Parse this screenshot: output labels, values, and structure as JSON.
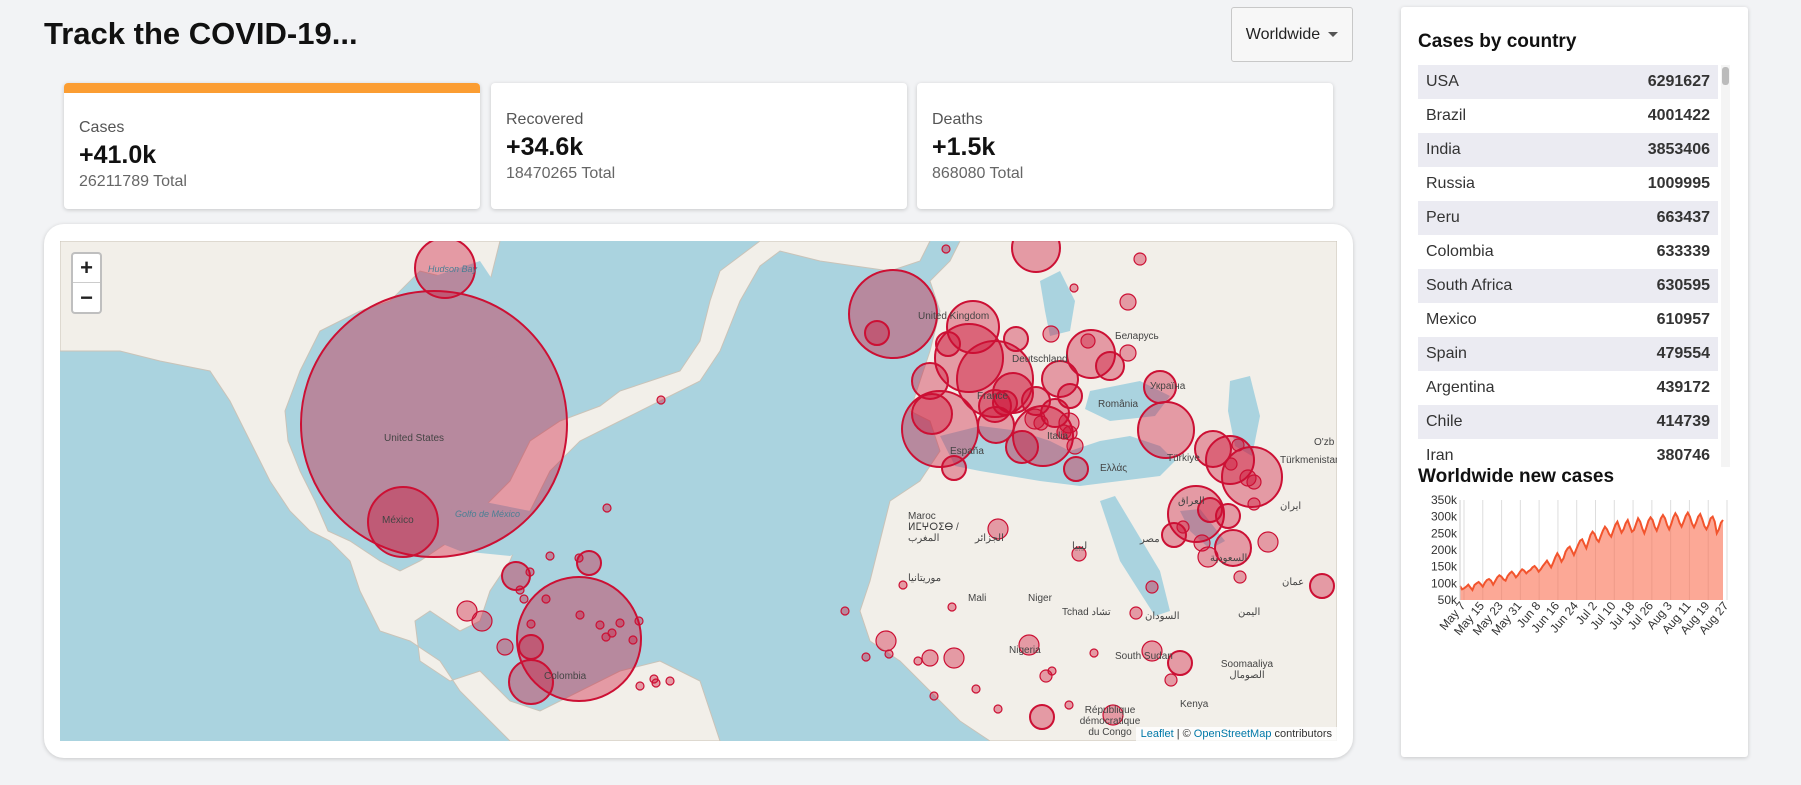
{
  "header": {
    "title": "Track the COVID-19...",
    "region_select": "Worldwide"
  },
  "stats": [
    {
      "label": "Cases",
      "delta": "+41.0k",
      "total": "26211789 Total",
      "accent": "#fb9d32",
      "active": true
    },
    {
      "label": "Recovered",
      "delta": "+34.6k",
      "total": "18470265 Total",
      "active": false
    },
    {
      "label": "Deaths",
      "delta": "+1.5k",
      "total": "868080 Total",
      "active": false
    }
  ],
  "map": {
    "zoom_in": "+",
    "zoom_out": "−",
    "attribution": {
      "leaflet": "Leaflet",
      "separator": "| ©",
      "osm": "OpenStreetMap",
      "suffix": "contributors"
    },
    "country_labels": [
      "United States",
      "México",
      "Colombia",
      "United Kingdom",
      "Deutschland",
      "France",
      "España",
      "Italia",
      "România",
      "Україна",
      "Беларусь",
      "Türkiye",
      "Ελλάς",
      "مصر",
      "العراق",
      "ایران",
      "السعودية",
      "الجزائر",
      "ليبيا",
      "Maroc ⵍⵎⵖⵔⵉⴱ / المغرب",
      "موريتانيا",
      "Mali",
      "Niger",
      "Tchad تشاد",
      "Nigeria",
      "السودان",
      "South Sudan",
      "République démocratique du Congo",
      "Kenya",
      "Soomaaliya الصومال",
      "اليمن",
      "عمان",
      "Türkmenistan",
      "O'zb"
    ],
    "sea_labels": [
      "Hudson Bay",
      "Golfo de México"
    ],
    "bubble_color": "#cc1034"
  },
  "sidebar": {
    "table_title": "Cases by country",
    "countries": [
      {
        "name": "USA",
        "cases": "6291627"
      },
      {
        "name": "Brazil",
        "cases": "4001422"
      },
      {
        "name": "India",
        "cases": "3853406"
      },
      {
        "name": "Russia",
        "cases": "1009995"
      },
      {
        "name": "Peru",
        "cases": "663437"
      },
      {
        "name": "Colombia",
        "cases": "633339"
      },
      {
        "name": "South Africa",
        "cases": "630595"
      },
      {
        "name": "Mexico",
        "cases": "610957"
      },
      {
        "name": "Spain",
        "cases": "479554"
      },
      {
        "name": "Argentina",
        "cases": "439172"
      },
      {
        "name": "Chile",
        "cases": "414739"
      },
      {
        "name": "Iran",
        "cases": "380746"
      }
    ],
    "chart_title": "Worldwide new cases"
  },
  "chart_data": {
    "type": "area",
    "ylim": [
      50000,
      350000
    ],
    "y_ticks": [
      "50k",
      "100k",
      "150k",
      "200k",
      "250k",
      "300k",
      "350k"
    ],
    "x_ticks": [
      "May 7",
      "May 15",
      "May 23",
      "May 31",
      "Jun 8",
      "Jun 16",
      "Jun 24",
      "Jul 2",
      "Jul 10",
      "Jul 18",
      "Jul 26",
      "Aug 3",
      "Aug 11",
      "Aug 19",
      "Aug 27"
    ],
    "color": "#cc1034",
    "series": [
      {
        "values": [
          92000,
          82000,
          85000,
          90000,
          96000,
          88000,
          80000,
          95000,
          100000,
          104000,
          98000,
          90000,
          102000,
          110000,
          113000,
          108000,
          96000,
          107000,
          118000,
          124000,
          120000,
          112000,
          108000,
          122000,
          130000,
          135000,
          128000,
          118000,
          125000,
          135000,
          142000,
          138000,
          130000,
          136000,
          140000,
          148000,
          152000,
          145000,
          135000,
          142000,
          152000,
          160000,
          168000,
          158000,
          148000,
          162000,
          178000,
          190000,
          180000,
          165000,
          175000,
          195000,
          205000,
          210000,
          198000,
          185000,
          200000,
          215000,
          228000,
          232000,
          218000,
          205000,
          225000,
          245000,
          255000,
          248000,
          232000,
          225000,
          242000,
          258000,
          270000,
          262000,
          248000,
          240000,
          258000,
          275000,
          285000,
          268000,
          252000,
          262000,
          280000,
          290000,
          272000,
          255000,
          260000,
          278000,
          295000,
          285000,
          265000,
          250000,
          268000,
          288000,
          298000,
          290000,
          270000,
          258000,
          275000,
          295000,
          305000,
          295000,
          275000,
          262000,
          278000,
          298000,
          310000,
          300000,
          282000,
          270000,
          285000,
          302000,
          312000,
          300000,
          280000,
          268000,
          282000,
          300000,
          308000,
          292000,
          272000,
          262000,
          275000,
          295000,
          300000,
          285000,
          250000,
          262000,
          282000,
          290000
        ]
      }
    ]
  }
}
